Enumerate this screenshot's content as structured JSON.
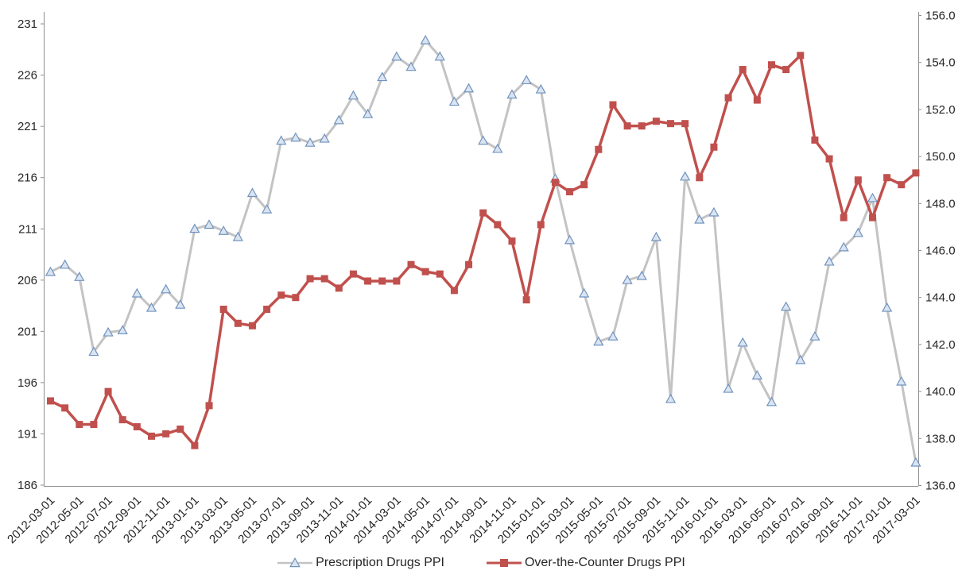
{
  "colors": {
    "axis_line": "#8e8e8e",
    "tick_text": "#262626",
    "background": "#ffffff"
  },
  "chart_data": {
    "type": "line",
    "title": "",
    "grid": false,
    "legend_position": "bottom-center",
    "x": [
      "2012-03-01",
      "2012-04-01",
      "2012-05-01",
      "2012-06-01",
      "2012-07-01",
      "2012-08-01",
      "2012-09-01",
      "2012-10-01",
      "2012-11-01",
      "2012-12-01",
      "2013-01-01",
      "2013-02-01",
      "2013-03-01",
      "2013-04-01",
      "2013-05-01",
      "2013-06-01",
      "2013-07-01",
      "2013-08-01",
      "2013-09-01",
      "2013-10-01",
      "2013-11-01",
      "2013-12-01",
      "2014-01-01",
      "2014-02-01",
      "2014-03-01",
      "2014-04-01",
      "2014-05-01",
      "2014-06-01",
      "2014-07-01",
      "2014-08-01",
      "2014-09-01",
      "2014-10-01",
      "2014-11-01",
      "2014-12-01",
      "2015-01-01",
      "2015-02-01",
      "2015-03-01",
      "2015-04-01",
      "2015-05-01",
      "2015-06-01",
      "2015-07-01",
      "2015-08-01",
      "2015-09-01",
      "2015-10-01",
      "2015-11-01",
      "2015-12-01",
      "2016-01-01",
      "2016-02-01",
      "2016-03-01",
      "2016-04-01",
      "2016-05-01",
      "2016-06-01",
      "2016-07-01",
      "2016-08-01",
      "2016-09-01",
      "2016-10-01",
      "2016-11-01",
      "2016-12-01",
      "2017-01-01",
      "2017-02-01",
      "2017-03-01"
    ],
    "x_axis": {
      "tick_every": 2,
      "tick_labels": [
        "2012-03-01",
        "2012-05-01",
        "2012-07-01",
        "2012-09-01",
        "2012-11-01",
        "2013-01-01",
        "2013-03-01",
        "2013-05-01",
        "2013-07-01",
        "2013-09-01",
        "2013-11-01",
        "2014-01-01",
        "2014-03-01",
        "2014-05-01",
        "2014-07-01",
        "2014-09-01",
        "2014-11-01",
        "2015-01-01",
        "2015-03-01",
        "2015-05-01",
        "2015-07-01",
        "2015-09-01",
        "2015-11-01",
        "2016-01-01",
        "2016-03-01",
        "2016-05-01",
        "2016-07-01",
        "2016-09-01",
        "2016-11-01",
        "2017-01-01",
        "2017-03-01"
      ]
    },
    "left_axis": {
      "min": 186,
      "max": 231,
      "step": 5,
      "tick_labels": [
        "186",
        "191",
        "196",
        "201",
        "206",
        "211",
        "216",
        "221",
        "226",
        "231"
      ]
    },
    "right_axis": {
      "min": 136,
      "max": 156,
      "step": 2,
      "tick_labels": [
        "136.0",
        "138.0",
        "140.0",
        "142.0",
        "144.0",
        "146.0",
        "148.0",
        "150.0",
        "152.0",
        "154.0",
        "156.0"
      ]
    },
    "series": [
      {
        "name": "Prescription Drugs PPI",
        "axis": "left",
        "marker": "triangle",
        "line_color": "#c3c3c3",
        "marker_fill": "#dbe5f1",
        "marker_stroke": "#7093bf",
        "values": [
          206.8,
          207.5,
          206.3,
          199.0,
          200.9,
          201.1,
          204.7,
          203.3,
          205.1,
          203.6,
          211.0,
          211.4,
          210.8,
          210.2,
          214.5,
          212.9,
          219.6,
          219.9,
          219.4,
          219.8,
          221.6,
          224.0,
          222.2,
          225.8,
          227.8,
          226.8,
          229.4,
          227.8,
          223.4,
          224.7,
          219.6,
          218.8,
          224.1,
          225.5,
          224.6,
          215.9,
          209.9,
          204.7,
          200.0,
          200.5,
          206.0,
          206.4,
          210.2,
          194.4,
          216.1,
          211.9,
          212.6,
          195.4,
          199.9,
          196.7,
          194.1,
          203.4,
          198.2,
          200.5,
          207.8,
          209.2,
          210.6,
          214.0,
          203.3,
          196.1,
          188.2
        ]
      },
      {
        "name": "Over-the-Counter Drugs PPI",
        "axis": "right",
        "marker": "square",
        "line_color": "#c0504d",
        "marker_fill": "#c0504d",
        "marker_stroke": "#c0504d",
        "values": [
          139.6,
          139.3,
          138.6,
          138.6,
          140.0,
          138.8,
          138.5,
          138.1,
          138.2,
          138.4,
          137.7,
          139.4,
          143.5,
          142.9,
          142.8,
          143.5,
          144.1,
          144.0,
          144.8,
          144.8,
          144.4,
          145.0,
          144.7,
          144.7,
          144.7,
          145.4,
          145.1,
          145.0,
          144.3,
          145.4,
          147.6,
          147.1,
          146.4,
          143.9,
          147.1,
          148.9,
          148.5,
          148.8,
          150.3,
          152.2,
          151.3,
          151.3,
          151.5,
          151.4,
          151.4,
          149.1,
          150.4,
          152.5,
          153.7,
          152.4,
          153.9,
          153.7,
          154.3,
          150.7,
          149.9,
          147.4,
          149.0,
          147.4,
          149.1,
          148.8,
          149.3
        ]
      }
    ]
  }
}
